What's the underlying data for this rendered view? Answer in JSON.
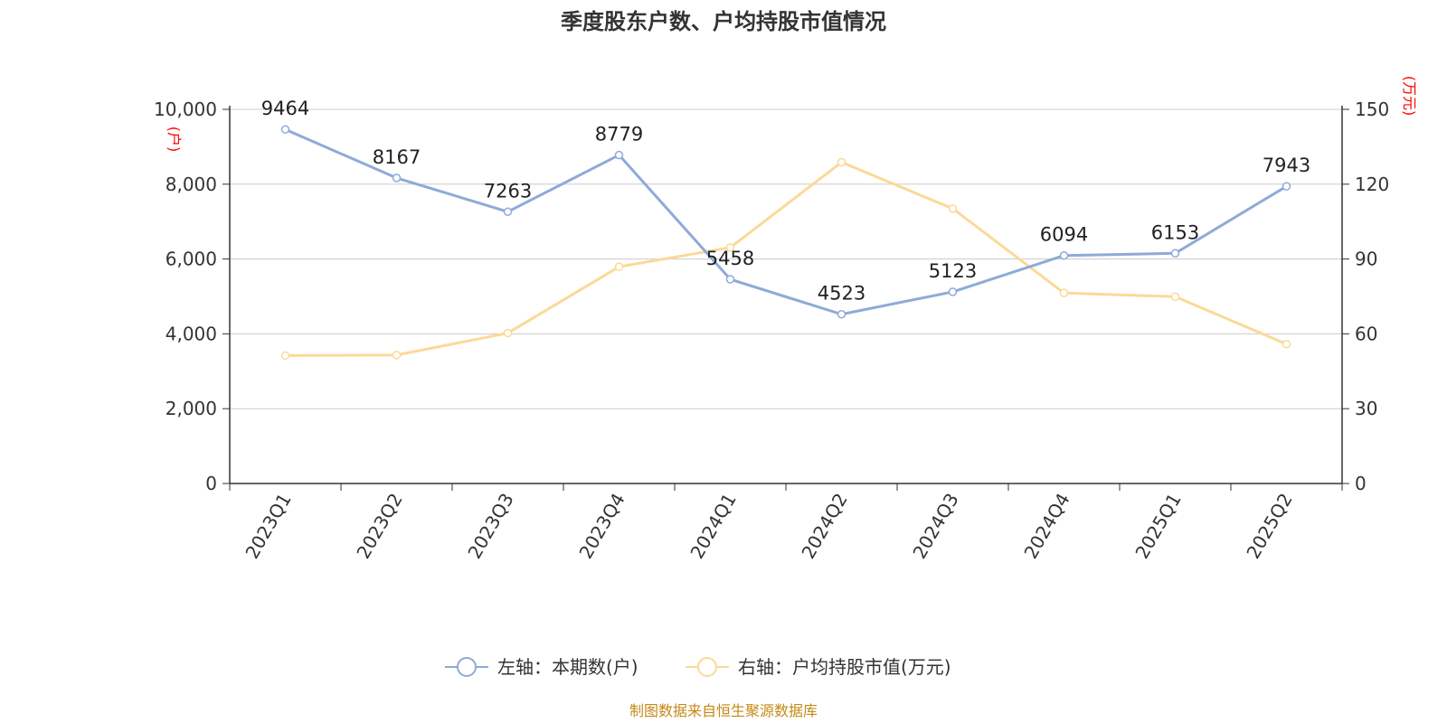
{
  "title": "季度股东户数、户均持股市值情况",
  "source": "制图数据来自恒生聚源数据库",
  "chart_data": {
    "type": "line",
    "categories": [
      "2023Q1",
      "2023Q2",
      "2023Q3",
      "2023Q4",
      "2024Q1",
      "2024Q2",
      "2024Q3",
      "2024Q4",
      "2025Q1",
      "2025Q2"
    ],
    "left_axis": {
      "unit": "(户)",
      "ylim": [
        0,
        10000
      ],
      "ticks": [
        "0",
        "2,000",
        "4,000",
        "6,000",
        "8,000",
        "10,000"
      ]
    },
    "right_axis": {
      "unit": "(万元)",
      "ylim": [
        0,
        150
      ],
      "ticks": [
        "0",
        "30",
        "60",
        "90",
        "120",
        "150"
      ]
    },
    "grid": true,
    "legend_position": "bottom",
    "series": [
      {
        "name": "左轴：本期数(户)",
        "axis": "left",
        "color": "#8eaad8",
        "values": [
          9464,
          8167,
          7263,
          8779,
          5458,
          4523,
          5123,
          6094,
          6153,
          7943
        ],
        "labels": [
          "9464",
          "8167",
          "7263",
          "8779",
          "5458",
          "4523",
          "5123",
          "6094",
          "6153",
          "7943"
        ]
      },
      {
        "name": "右轴：户均持股市值(万元)",
        "axis": "right",
        "color": "#fbd998",
        "values": [
          51.3,
          51.5,
          60.3,
          86.9,
          94.6,
          128.8,
          110.2,
          76.4,
          74.9,
          55.9
        ]
      }
    ]
  }
}
